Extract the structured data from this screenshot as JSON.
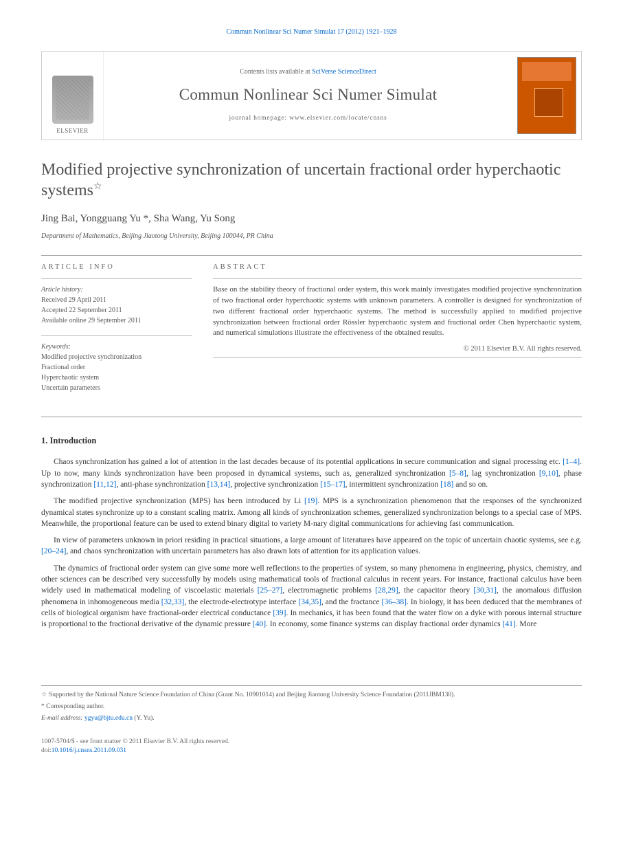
{
  "running_head": "Commun Nonlinear Sci Numer Simulat 17 (2012) 1921–1928",
  "header": {
    "logo_label": "ELSEVIER",
    "contents_prefix": "Contents lists available at ",
    "contents_link": "SciVerse ScienceDirect",
    "journal_name": "Commun Nonlinear Sci Numer Simulat",
    "homepage_prefix": "journal homepage: ",
    "homepage_url": "www.elsevier.com/locate/cnsns"
  },
  "article": {
    "title": "Modified projective synchronization of uncertain fractional order hyperchaotic systems",
    "star_note": "☆",
    "authors": "Jing Bai, Yongguang Yu *, Sha Wang, Yu Song",
    "affiliation": "Department of Mathematics, Beijing Jiaotong University, Beijing 100044, PR China"
  },
  "article_info": {
    "heading": "ARTICLE INFO",
    "history_label": "Article history:",
    "received": "Received 29 April 2011",
    "accepted": "Accepted 22 September 2011",
    "online": "Available online 29 September 2011",
    "keywords_label": "Keywords:",
    "kw1": "Modified projective synchronization",
    "kw2": "Fractional order",
    "kw3": "Hyperchaotic system",
    "kw4": "Uncertain parameters"
  },
  "abstract": {
    "heading": "ABSTRACT",
    "text": "Base on the stability theory of fractional order system, this work mainly investigates modified projective synchronization of two fractional order hyperchaotic systems with unknown parameters. A controller is designed for synchronization of two different fractional order hyperchaotic systems. The method is successfully applied to modified projective synchronization between fractional order Rössler hyperchaotic system and fractional order Chen hyperchaotic system, and numerical simulations illustrate the effectiveness of the obtained results.",
    "copyright": "© 2011 Elsevier B.V. All rights reserved."
  },
  "section1": {
    "heading": "1. Introduction",
    "p1a": "Chaos synchronization has gained a lot of attention in the last decades because of its potential applications in secure communication and signal processing etc. ",
    "r1": "[1–4]",
    "p1b": ". Up to now, many kinds synchronization have been proposed in dynamical systems, such as, generalized synchronization ",
    "r2": "[5–8]",
    "p1c": ", lag synchronization ",
    "r3": "[9,10]",
    "p1d": ", phase synchronization ",
    "r4": "[11,12]",
    "p1e": ", anti-phase synchronization ",
    "r5": "[13,14]",
    "p1f": ", projective synchronization ",
    "r6": "[15–17]",
    "p1g": ", intermittent synchronization ",
    "r7": "[18]",
    "p1h": " and so on.",
    "p2a": "The modified projective synchronization (MPS) has been introduced by Li ",
    "r8": "[19]",
    "p2b": ". MPS is a synchronization phenomenon that the responses of the synchronized dynamical states synchronize up to a constant scaling matrix. Among all kinds of synchronization schemes, generalized synchronization belongs to a special case of MPS. Meanwhile, the proportional feature can be used to extend binary digital to variety M-nary digital communications for achieving fast communication.",
    "p3a": "In view of parameters unknown in priori residing in practical situations, a large amount of literatures have appeared on the topic of uncertain chaotic systems, see e.g. ",
    "r9": "[20–24]",
    "p3b": ", and chaos synchronization with uncertain parameters has also drawn lots of attention for its application values.",
    "p4a": "The dynamics of fractional order system can give some more well reflections to the properties of system, so many phenomena in engineering, physics, chemistry, and other sciences can be described very successfully by models using mathematical tools of fractional calculus in recent years. For instance, fractional calculus have been widely used in mathematical modeling of viscoelastic materials ",
    "r10": "[25–27]",
    "p4b": ", electromagnetic problems ",
    "r11": "[28,29]",
    "p4c": ", the capacitor theory ",
    "r12": "[30,31]",
    "p4d": ", the anomalous diffusion phenomena in inhomogeneous media ",
    "r13": "[32,33]",
    "p4e": ", the electrode-electrotype interface ",
    "r14": "[34,35]",
    "p4f": ", and the fractance ",
    "r15": "[36–38]",
    "p4g": ". In biology, it has been deduced that the membranes of cells of biological organism have fractional-order electrical conductance ",
    "r16": "[39]",
    "p4h": ". In mechanics, it has been found that the water flow on a dyke with porous internal structure is proportional to the fractional derivative of the dynamic pressure ",
    "r17": "[40]",
    "p4i": ". In economy, some finance systems can display fractional order dynamics ",
    "r18": "[41]",
    "p4j": ". More"
  },
  "footnotes": {
    "fn1_marker": "☆",
    "fn1_text": " Supported by the National Nature Science Foundation of China (Grant No. 10901014) and Beijing Jiaotong University Science Foundation (2011JBM130).",
    "fn2_marker": "*",
    "fn2_text": " Corresponding author.",
    "email_label": "E-mail address: ",
    "email": "ygyu@bjtu.edu.cn",
    "email_who": " (Y. Yu)."
  },
  "footer": {
    "issn": "1007-5704/$ - see front matter © 2011 Elsevier B.V. All rights reserved.",
    "doi_prefix": "doi:",
    "doi": "10.1016/j.cnsns.2011.09.031"
  }
}
